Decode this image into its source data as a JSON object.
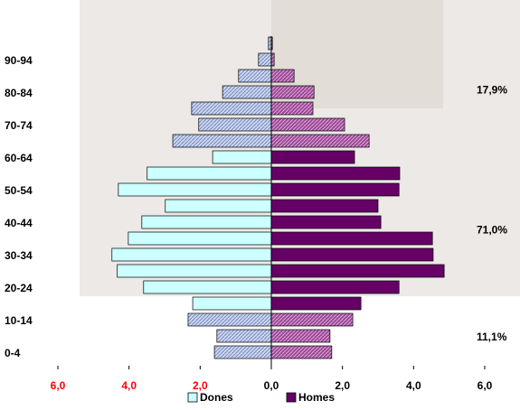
{
  "chart_data": {
    "type": "pyramid",
    "categories": [
      "0-4",
      null,
      "10-14",
      null,
      "20-24",
      null,
      "30-34",
      null,
      "40-44",
      null,
      "50-54",
      null,
      "60-64",
      null,
      "70-74",
      null,
      "80-84",
      null,
      "90-94",
      null
    ],
    "series": [
      {
        "name": "Dones",
        "color": "#ccffff",
        "values": [
          -1.6,
          -1.53,
          -2.34,
          -2.21,
          -3.59,
          -4.33,
          -4.48,
          -4.02,
          -3.64,
          -2.98,
          -4.3,
          -3.49,
          -1.65,
          -2.77,
          -2.04,
          -2.24,
          -1.37,
          -0.92,
          -0.36,
          -0.08
        ]
      },
      {
        "name": "Homes",
        "color": "#660066",
        "values": [
          1.7,
          1.65,
          2.29,
          2.52,
          3.59,
          4.86,
          4.55,
          4.53,
          3.08,
          3.0,
          3.59,
          3.61,
          2.34,
          2.75,
          2.06,
          1.17,
          1.2,
          0.64,
          0.08,
          0.03
        ]
      }
    ],
    "xlim": [
      -6,
      6
    ],
    "xticks": [
      {
        "value": -6,
        "label": "6,0"
      },
      {
        "value": -4,
        "label": "4,0"
      },
      {
        "value": -2,
        "label": "2,0"
      },
      {
        "value": 0,
        "label": "0,0"
      },
      {
        "value": 2,
        "label": "2,0"
      },
      {
        "value": 4,
        "label": "4,0"
      },
      {
        "value": 6,
        "label": "6,0"
      }
    ],
    "annotations": [
      "11,1%",
      "71,0%",
      "17,9%"
    ],
    "legend": "bottom"
  }
}
